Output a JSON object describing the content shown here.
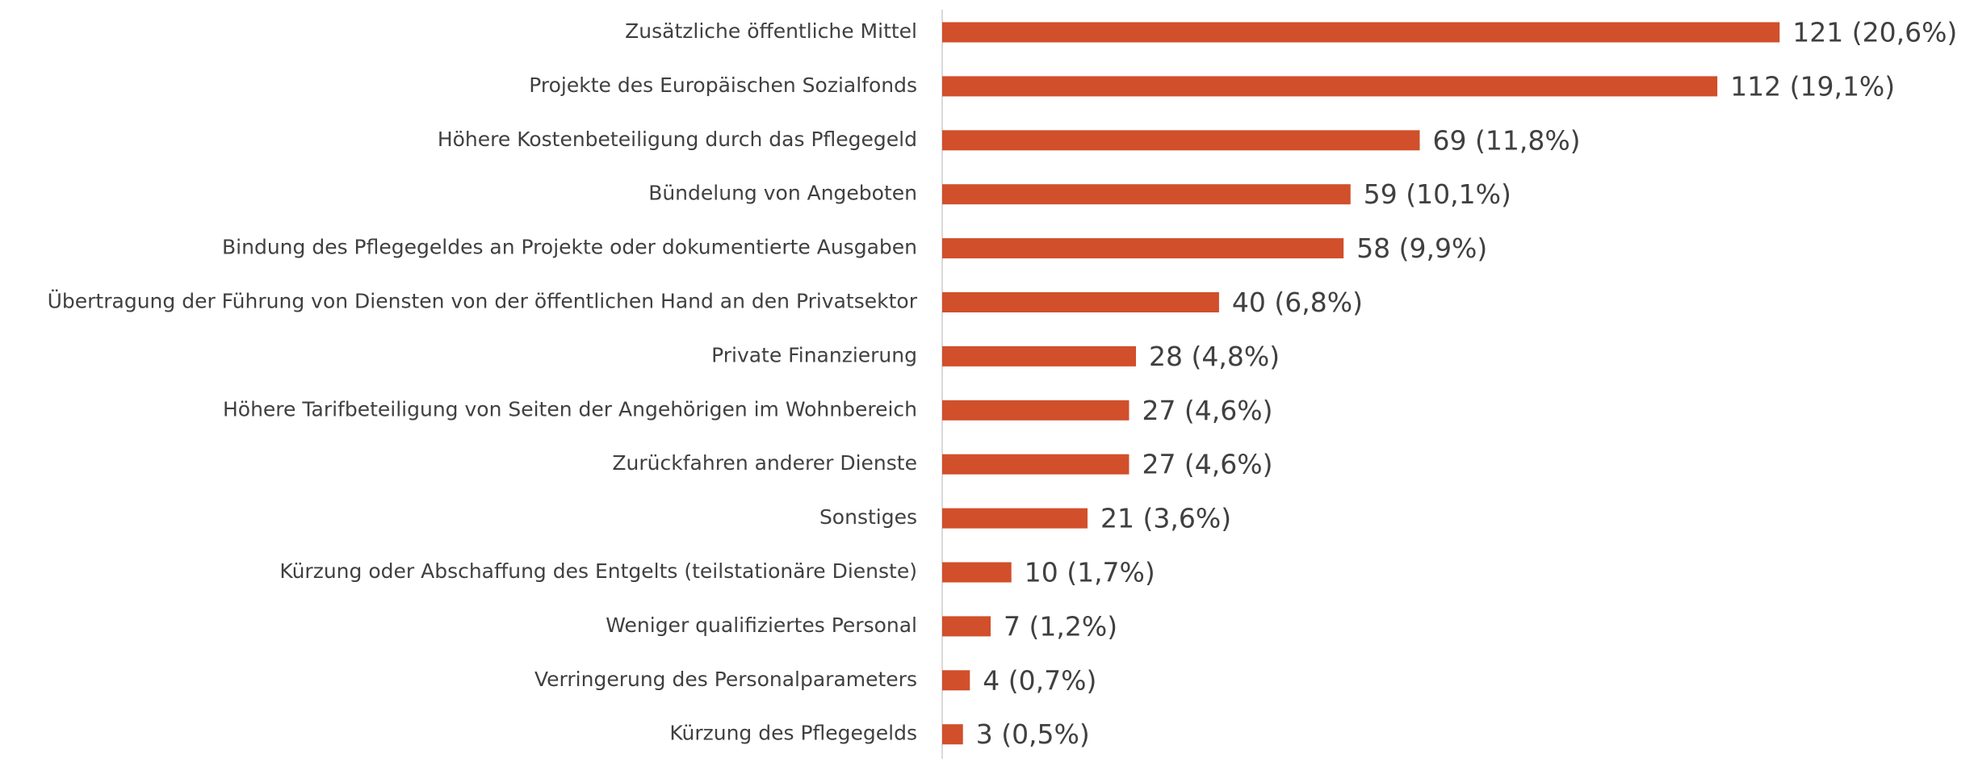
{
  "chart_data": {
    "type": "barh",
    "categories": [
      "Zusätzliche öffentliche Mittel",
      "Projekte des Europäischen Sozialfonds",
      "Höhere Kostenbeteiligung durch das Pflegegeld",
      "Bündelung von Angeboten",
      "Bindung des Pflegegeldes an Projekte oder dokumentierte Ausgaben",
      "Übertragung der Führung von Diensten von der öffentlichen Hand an den Privatsektor",
      "Private Finanzierung",
      "Höhere Tarifbeteiligung von Seiten der Angehörigen im Wohnbereich",
      "Zurückfahren anderer Dienste",
      "Sonstiges",
      "Kürzung oder Abschaffung des Entgelts (teilstationäre Dienste)",
      "Weniger qualifiziertes Personal",
      "Verringerung des Personalparameters",
      "Kürzung des Pflegegelds"
    ],
    "values": [
      121,
      112,
      69,
      59,
      58,
      40,
      28,
      27,
      27,
      21,
      10,
      7,
      4,
      3
    ],
    "value_labels": [
      "121 (20,6%)",
      "112 (19,1%)",
      "69 (11,8%)",
      "59 (10,1%)",
      "58 (9,9%)",
      "40 (6,8%)",
      "28 (4,8%)",
      "27 (4,6%)",
      "27 (4,6%)",
      "21 (3,6%)",
      "10 (1,7%)",
      "7 (1,2%)",
      "4 (0,7%)",
      "3 (0,5%)"
    ],
    "color": "#d14f2b",
    "xlim": [
      0,
      145
    ]
  }
}
